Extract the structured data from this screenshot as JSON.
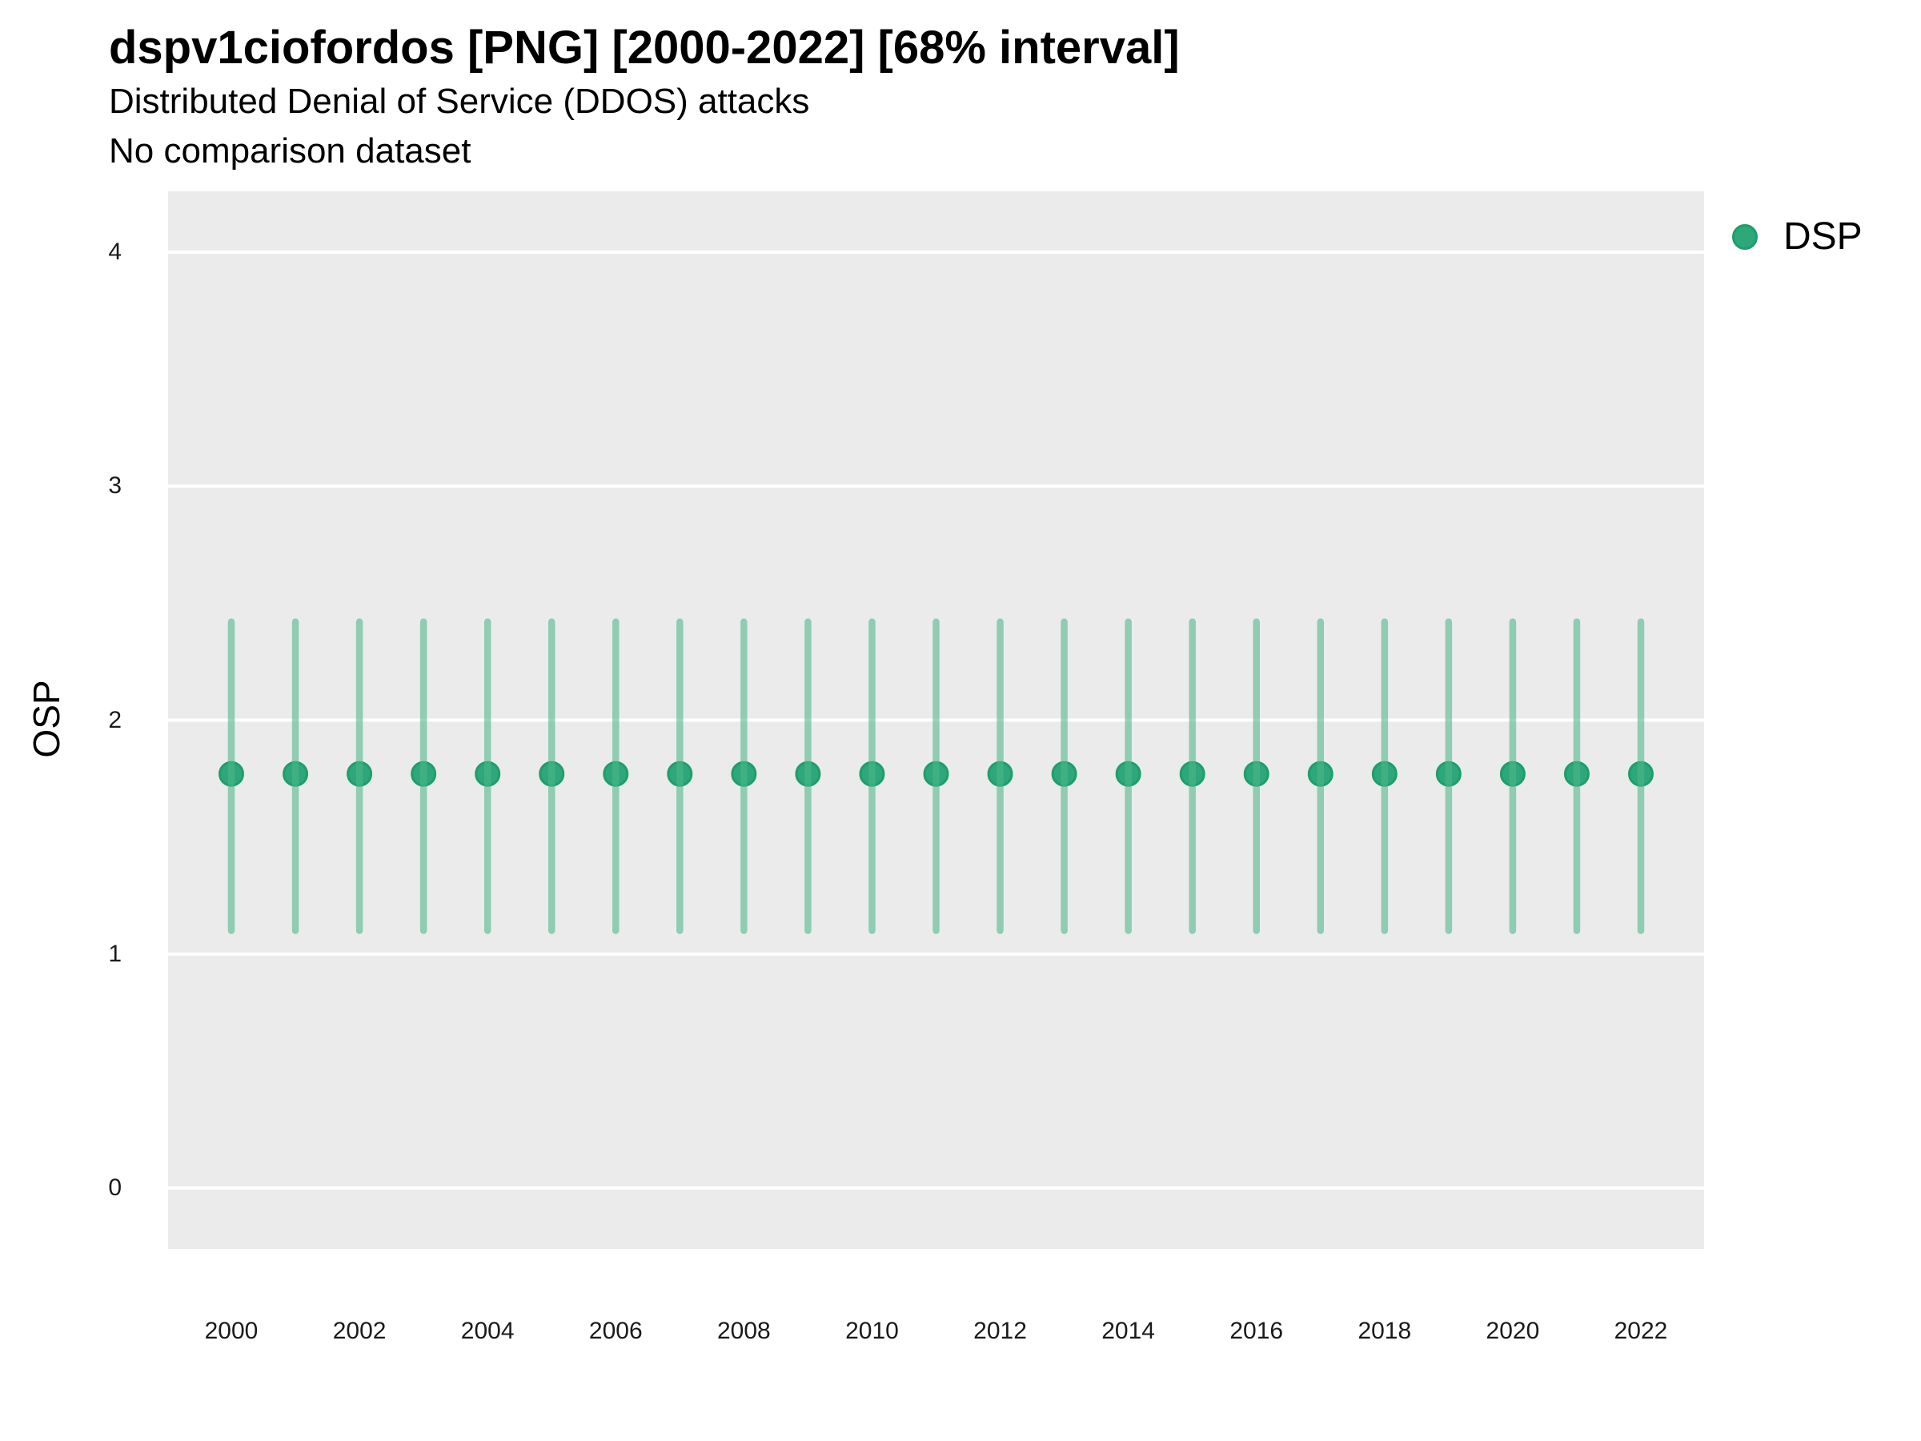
{
  "header": {
    "title": "dspv1ciofordos [PNG] [2000-2022] [68% interval]",
    "subtitle": "Distributed Denial of Service (DDOS) attacks",
    "note": "No comparison dataset"
  },
  "axes": {
    "y_title": "OSP",
    "x_title": ""
  },
  "legend": {
    "position": "right",
    "items": [
      {
        "label": "DSP",
        "swatch": "circle"
      }
    ]
  },
  "colors": {
    "point": "#2CA87A",
    "point_stroke": "#1E9E6C",
    "interval": "#4FB68A",
    "interval_opacity": 0.59,
    "panel_bg": "#EBEBEB",
    "grid": "#FFFFFF",
    "text": "#000000",
    "tick_text": "#1a1a1a"
  },
  "chart_data": {
    "type": "scatter",
    "title": "dspv1ciofordos [PNG] [2000-2022] [68% interval]",
    "subtitle": "Distributed Denial of Service (DDOS) attacks",
    "annotation": "No comparison dataset",
    "xlabel": "",
    "ylabel": "OSP",
    "legend_entries": [
      "DSP"
    ],
    "legend_position": "right",
    "grid": "horizontal-major-only",
    "interval_note": "68% interval shown as vertical bars",
    "ylim": [
      -0.26,
      4.26
    ],
    "y_ticks": [
      0,
      1,
      2,
      3,
      4
    ],
    "x_ticks": [
      2000,
      2002,
      2004,
      2006,
      2008,
      2010,
      2012,
      2014,
      2016,
      2018,
      2020,
      2022
    ],
    "x": [
      2000,
      2001,
      2002,
      2003,
      2004,
      2005,
      2006,
      2007,
      2008,
      2009,
      2010,
      2011,
      2012,
      2013,
      2014,
      2015,
      2016,
      2017,
      2018,
      2019,
      2020,
      2021,
      2022
    ],
    "series": [
      {
        "name": "DSP",
        "values": [
          1.77,
          1.77,
          1.77,
          1.77,
          1.77,
          1.77,
          1.77,
          1.77,
          1.77,
          1.77,
          1.77,
          1.77,
          1.77,
          1.77,
          1.77,
          1.77,
          1.77,
          1.77,
          1.77,
          1.77,
          1.77,
          1.77,
          1.77
        ],
        "interval_low": [
          1.1,
          1.1,
          1.1,
          1.1,
          1.1,
          1.1,
          1.1,
          1.1,
          1.1,
          1.1,
          1.1,
          1.1,
          1.1,
          1.1,
          1.1,
          1.1,
          1.1,
          1.1,
          1.1,
          1.1,
          1.1,
          1.1,
          1.1
        ],
        "interval_high": [
          2.42,
          2.42,
          2.42,
          2.42,
          2.42,
          2.42,
          2.42,
          2.42,
          2.42,
          2.42,
          2.42,
          2.42,
          2.42,
          2.42,
          2.42,
          2.42,
          2.42,
          2.42,
          2.42,
          2.42,
          2.42,
          2.42,
          2.42
        ]
      }
    ]
  }
}
